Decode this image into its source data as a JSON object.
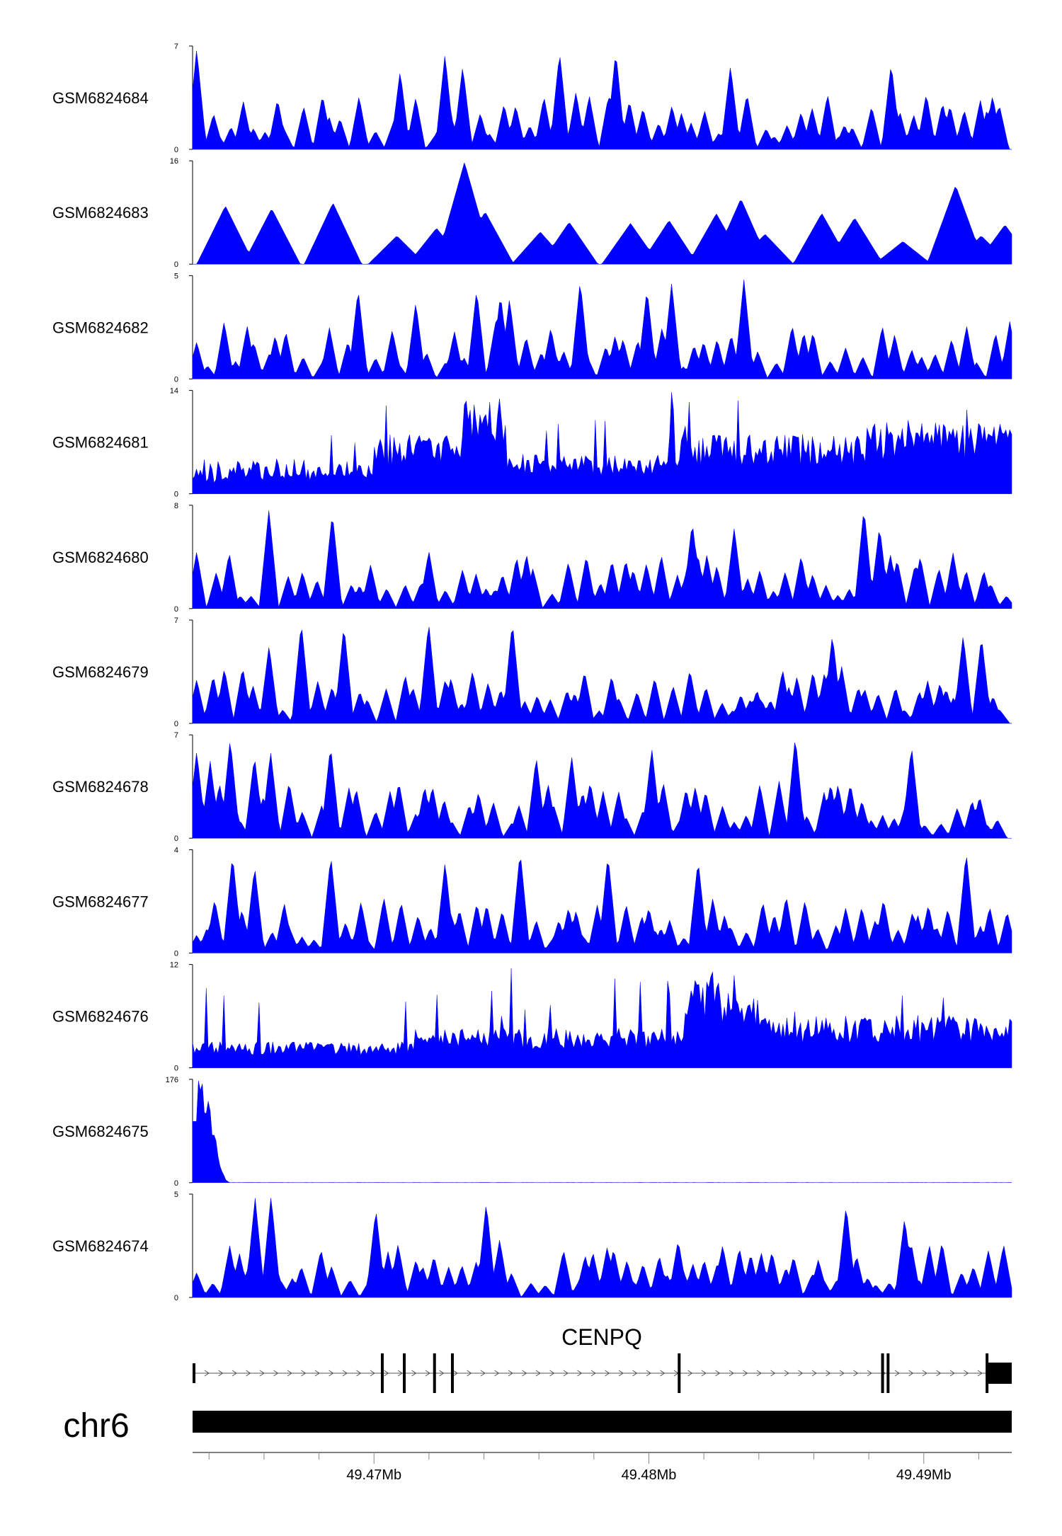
{
  "chart_data": {
    "type": "area",
    "title": "",
    "xlabel": "",
    "ylabel": "",
    "fill_color": "#0000ff",
    "x_unit": "Mb",
    "xlim": [
      49.4634,
      49.4932
    ],
    "x_ticks": [
      49.47,
      49.48,
      49.49
    ],
    "x_tick_labels": [
      "49.47Mb",
      "49.48Mb",
      "49.49Mb"
    ],
    "tracks": [
      {
        "name": "GSM6824684",
        "ymax": 7,
        "ymin_label": "0",
        "ymax_label": "7",
        "seed": 684,
        "style": "spiky",
        "peak_max": 6.9
      },
      {
        "name": "GSM6824683",
        "ymax": 16,
        "ymin_label": "0",
        "ymax_label": "16",
        "seed": 683,
        "style": "sparse",
        "peak_max": 16
      },
      {
        "name": "GSM6824682",
        "ymax": 5,
        "ymin_label": "0",
        "ymax_label": "5",
        "seed": 682,
        "style": "spiky",
        "peak_max": 4.9
      },
      {
        "name": "GSM6824681",
        "ymax": 14,
        "ymin_label": "0",
        "ymax_label": "14",
        "seed": 681,
        "style": "dense",
        "peak_max": 13.7
      },
      {
        "name": "GSM6824680",
        "ymax": 8,
        "ymin_label": "0",
        "ymax_label": "8",
        "seed": 680,
        "style": "spiky",
        "peak_max": 7.9
      },
      {
        "name": "GSM6824679",
        "ymax": 7,
        "ymin_label": "0",
        "ymax_label": "7",
        "seed": 679,
        "style": "spiky",
        "peak_max": 7
      },
      {
        "name": "GSM6824678",
        "ymax": 7,
        "ymin_label": "0",
        "ymax_label": "7",
        "seed": 678,
        "style": "spiky",
        "peak_max": 7
      },
      {
        "name": "GSM6824677",
        "ymax": 4,
        "ymin_label": "0",
        "ymax_label": "4",
        "seed": 677,
        "style": "spiky",
        "peak_max": 4
      },
      {
        "name": "GSM6824676",
        "ymax": 12,
        "ymin_label": "0",
        "ymax_label": "12",
        "seed": 676,
        "style": "dense",
        "peak_max": 12
      },
      {
        "name": "GSM6824675",
        "ymax": 176,
        "ymin_label": "0",
        "ymax_label": "176",
        "seed": 675,
        "style": "single_peak",
        "peak_max": 176
      },
      {
        "name": "GSM6824674",
        "ymax": 5,
        "ymin_label": "0",
        "ymax_label": "5",
        "seed": 674,
        "style": "spiky",
        "peak_max": 5
      }
    ],
    "gene": {
      "name": "CENPQ",
      "strand": "+",
      "start": 49.4634,
      "end": 49.4932,
      "exons": [
        {
          "start": 49.4634,
          "end": 49.46345
        },
        {
          "start": 49.47025,
          "end": 49.47035
        },
        {
          "start": 49.47105,
          "end": 49.4711
        },
        {
          "start": 49.47215,
          "end": 49.47225
        },
        {
          "start": 49.4728,
          "end": 49.47285
        },
        {
          "start": 49.48105,
          "end": 49.48115
        },
        {
          "start": 49.48845,
          "end": 49.48855
        },
        {
          "start": 49.48865,
          "end": 49.48872
        },
        {
          "start": 49.49225,
          "end": 49.49235
        },
        {
          "start": 49.49235,
          "end": 49.4932
        }
      ]
    },
    "chromosome": {
      "name": "chr6",
      "start": 49.4634,
      "end": 49.4932
    }
  }
}
